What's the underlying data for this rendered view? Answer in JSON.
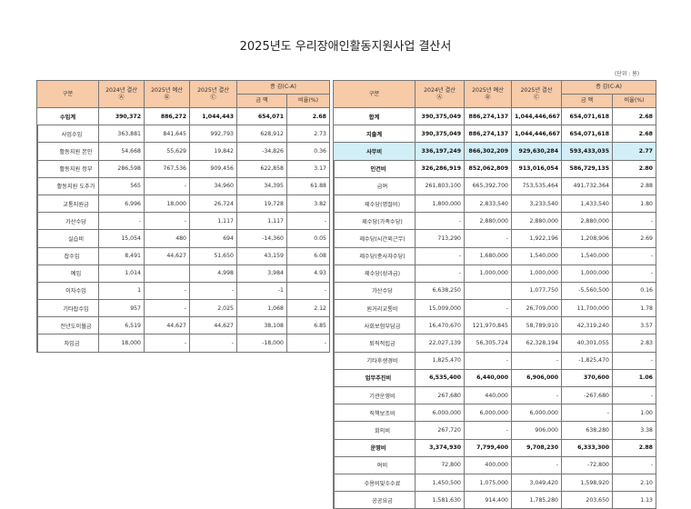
{
  "title": "2025년도 우리장애인활동지원사업 결산서",
  "unit": "(단위 : 원)",
  "headers": {
    "category": "구분",
    "y2024": "2024년 결산",
    "y2024_mark": "Ⓐ",
    "budget2025": "2025년 예산",
    "budget2025_mark": "Ⓑ",
    "y2025": "2025년 결산",
    "y2025_mark": "Ⓒ",
    "change": "증 감(C-A)",
    "amount": "금 액",
    "ratio": "비율(%)"
  },
  "colors": {
    "header": "#f7caa8",
    "highlight": "#d2eef7"
  },
  "left_table": [
    {
      "label": "수입계",
      "level": 0,
      "bold": true,
      "v": [
        "390,372",
        "886,272",
        "1,044,443",
        "654,071",
        "2.68"
      ]
    },
    {
      "label": "사업수입",
      "level": 1,
      "v": [
        "363,881",
        "841,645",
        "992,793",
        "628,912",
        "2.73"
      ]
    },
    {
      "label": "활동지원 본인",
      "level": 2,
      "v": [
        "54,668",
        "55,629",
        "19,842",
        "-34,826",
        "0.36"
      ]
    },
    {
      "label": "활동지원 정부",
      "level": 2,
      "v": [
        "286,598",
        "767,536",
        "909,456",
        "622,858",
        "3.17"
      ]
    },
    {
      "label": "활동지원 도추가",
      "level": 2,
      "v": [
        "565",
        "-",
        "34,960",
        "34,395",
        "61.88"
      ]
    },
    {
      "label": "교통지원금",
      "level": 2,
      "v": [
        "6,996",
        "18,000",
        "26,724",
        "19,728",
        "3.82"
      ]
    },
    {
      "label": "가산수당",
      "level": 2,
      "v": [
        "-",
        "-",
        "1,117",
        "1,117",
        "-"
      ]
    },
    {
      "label": "실습비",
      "level": 2,
      "v": [
        "15,054",
        "480",
        "694",
        "-14,360",
        "0.05"
      ]
    },
    {
      "label": "잡수입",
      "level": 1,
      "v": [
        "8,491",
        "44,627",
        "51,650",
        "43,159",
        "6.08"
      ]
    },
    {
      "label": "예입",
      "level": 2,
      "v": [
        "1,014",
        "",
        "4,998",
        "3,984",
        "4.93"
      ]
    },
    {
      "label": "이자수입",
      "level": 2,
      "v": [
        "1",
        "-",
        "-",
        "-1",
        "-"
      ]
    },
    {
      "label": "기타잡수입",
      "level": 2,
      "v": [
        "957",
        "-",
        "2,025",
        "1,068",
        "2.12"
      ]
    },
    {
      "label": "전년도이월금",
      "level": 2,
      "v": [
        "6,519",
        "44,627",
        "44,627",
        "38,108",
        "6.85"
      ]
    },
    {
      "label": "차입금",
      "level": 1,
      "v": [
        "18,000",
        "-",
        "-",
        "-18,000",
        "-"
      ]
    }
  ],
  "right_table": [
    {
      "label": "합계",
      "level": 0,
      "bold": true,
      "v": [
        "390,375,049",
        "886,274,137",
        "1,044,446,667",
        "654,071,618",
        "2.68"
      ]
    },
    {
      "label": "지출계",
      "level": 0,
      "bold": true,
      "v": [
        "390,375,049",
        "886,274,137",
        "1,044,446,667",
        "654,071,618",
        "2.68"
      ]
    },
    {
      "label": "사무비",
      "level": 0,
      "bold": true,
      "highlight": true,
      "v": [
        "336,197,249",
        "866,302,209",
        "929,630,284",
        "593,433,035",
        "2.77"
      ]
    },
    {
      "label": "인건비",
      "level": 1,
      "bold": true,
      "v": [
        "326,286,919",
        "852,062,809",
        "913,016,054",
        "586,729,135",
        "2.80"
      ]
    },
    {
      "label": "급여",
      "level": 2,
      "v": [
        "261,803,100",
        "665,392,700",
        "753,535,464",
        "491,732,364",
        "2.88"
      ]
    },
    {
      "label": "제수당(명절비)",
      "level": 2,
      "v": [
        "1,800,000",
        "2,833,540",
        "3,233,540",
        "1,433,540",
        "1.80"
      ]
    },
    {
      "label": "제수당(가족수당)",
      "level": 2,
      "v": [
        "-",
        "2,880,000",
        "2,880,000",
        "2,880,000",
        "-"
      ]
    },
    {
      "label": "제수당(시간외근무)",
      "level": 2,
      "v": [
        "713,290",
        "-",
        "1,922,196",
        "1,208,906",
        "2.69"
      ]
    },
    {
      "label": "제수당(종사자수당)",
      "level": 2,
      "v": [
        "-",
        "1,680,000",
        "1,540,000",
        "1,540,000",
        "-"
      ]
    },
    {
      "label": "제수당(성과급)",
      "level": 2,
      "v": [
        "-",
        "1,000,000",
        "1,000,000",
        "1,000,000",
        "-"
      ]
    },
    {
      "label": "가산수당",
      "level": 2,
      "v": [
        "6,638,250",
        "",
        "1,077,750",
        "-5,560,500",
        "0.16"
      ]
    },
    {
      "label": "원거리교통비",
      "level": 2,
      "v": [
        "15,009,000",
        "-",
        "26,709,000",
        "11,700,000",
        "1.78"
      ]
    },
    {
      "label": "사회보험부담금",
      "level": 2,
      "v": [
        "16,470,670",
        "121,970,845",
        "58,789,910",
        "42,319,240",
        "3.57"
      ]
    },
    {
      "label": "퇴직적립금",
      "level": 2,
      "v": [
        "22,027,139",
        "56,305,724",
        "62,328,194",
        "40,301,055",
        "2.83"
      ]
    },
    {
      "label": "기타후생경비",
      "level": 2,
      "v": [
        "1,825,470",
        "-",
        "-",
        "-1,825,470",
        "-"
      ]
    },
    {
      "label": "업무추진비",
      "level": 1,
      "bold": true,
      "v": [
        "6,535,400",
        "6,440,000",
        "6,906,000",
        "370,600",
        "1.06"
      ]
    },
    {
      "label": "기관운영비",
      "level": 2,
      "v": [
        "267,680",
        "440,000",
        "-",
        "-267,680",
        "-"
      ]
    },
    {
      "label": "직책보조비",
      "level": 2,
      "v": [
        "6,000,000",
        "6,000,000",
        "6,000,000",
        "-",
        "1.00"
      ]
    },
    {
      "label": "회의비",
      "level": 2,
      "v": [
        "267,720",
        "-",
        "906,000",
        "638,280",
        "3.38"
      ]
    },
    {
      "label": "운영비",
      "level": 1,
      "bold": true,
      "v": [
        "3,374,930",
        "7,799,400",
        "9,708,230",
        "6,333,300",
        "2.88"
      ]
    },
    {
      "label": "여비",
      "level": 2,
      "v": [
        "72,800",
        "400,000",
        "-",
        "-72,800",
        "-"
      ]
    },
    {
      "label": "수용비및수수료",
      "level": 2,
      "v": [
        "1,450,500",
        "1,075,000",
        "3,049,420",
        "1,598,920",
        "2.10"
      ]
    },
    {
      "label": "공공요금",
      "level": 2,
      "v": [
        "1,581,630",
        "914,400",
        "1,785,280",
        "203,650",
        "1.13"
      ]
    }
  ]
}
